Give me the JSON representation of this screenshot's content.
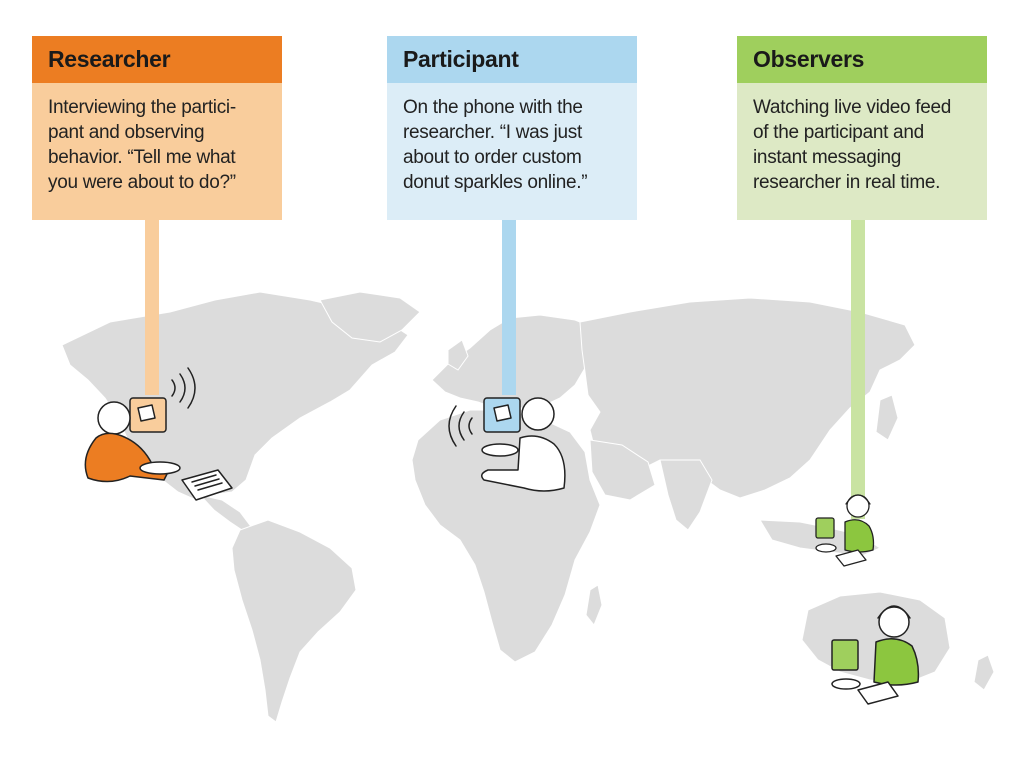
{
  "colors": {
    "researcher_header": "#ec7d22",
    "researcher_body": "#f9cd9c",
    "participant_header": "#acd7ef",
    "participant_body": "#dcedf7",
    "observers_header": "#9fcf5d",
    "observers_body": "#dde9c5",
    "map_land": "#dcdcdc"
  },
  "researcher": {
    "title": "Researcher",
    "lines": [
      "Interviewing the partici-",
      "pant and observing",
      "behavior. “Tell me what",
      "you were about to do?”"
    ]
  },
  "participant": {
    "title": "Participant",
    "lines": [
      "On the phone with the",
      "researcher. “I was just",
      "about to order custom",
      "donut sparkles online.”"
    ]
  },
  "observers": {
    "title": "Observers",
    "lines": [
      "Watching live video feed",
      "of the participant and",
      "instant messaging",
      "researcher in real time."
    ]
  }
}
